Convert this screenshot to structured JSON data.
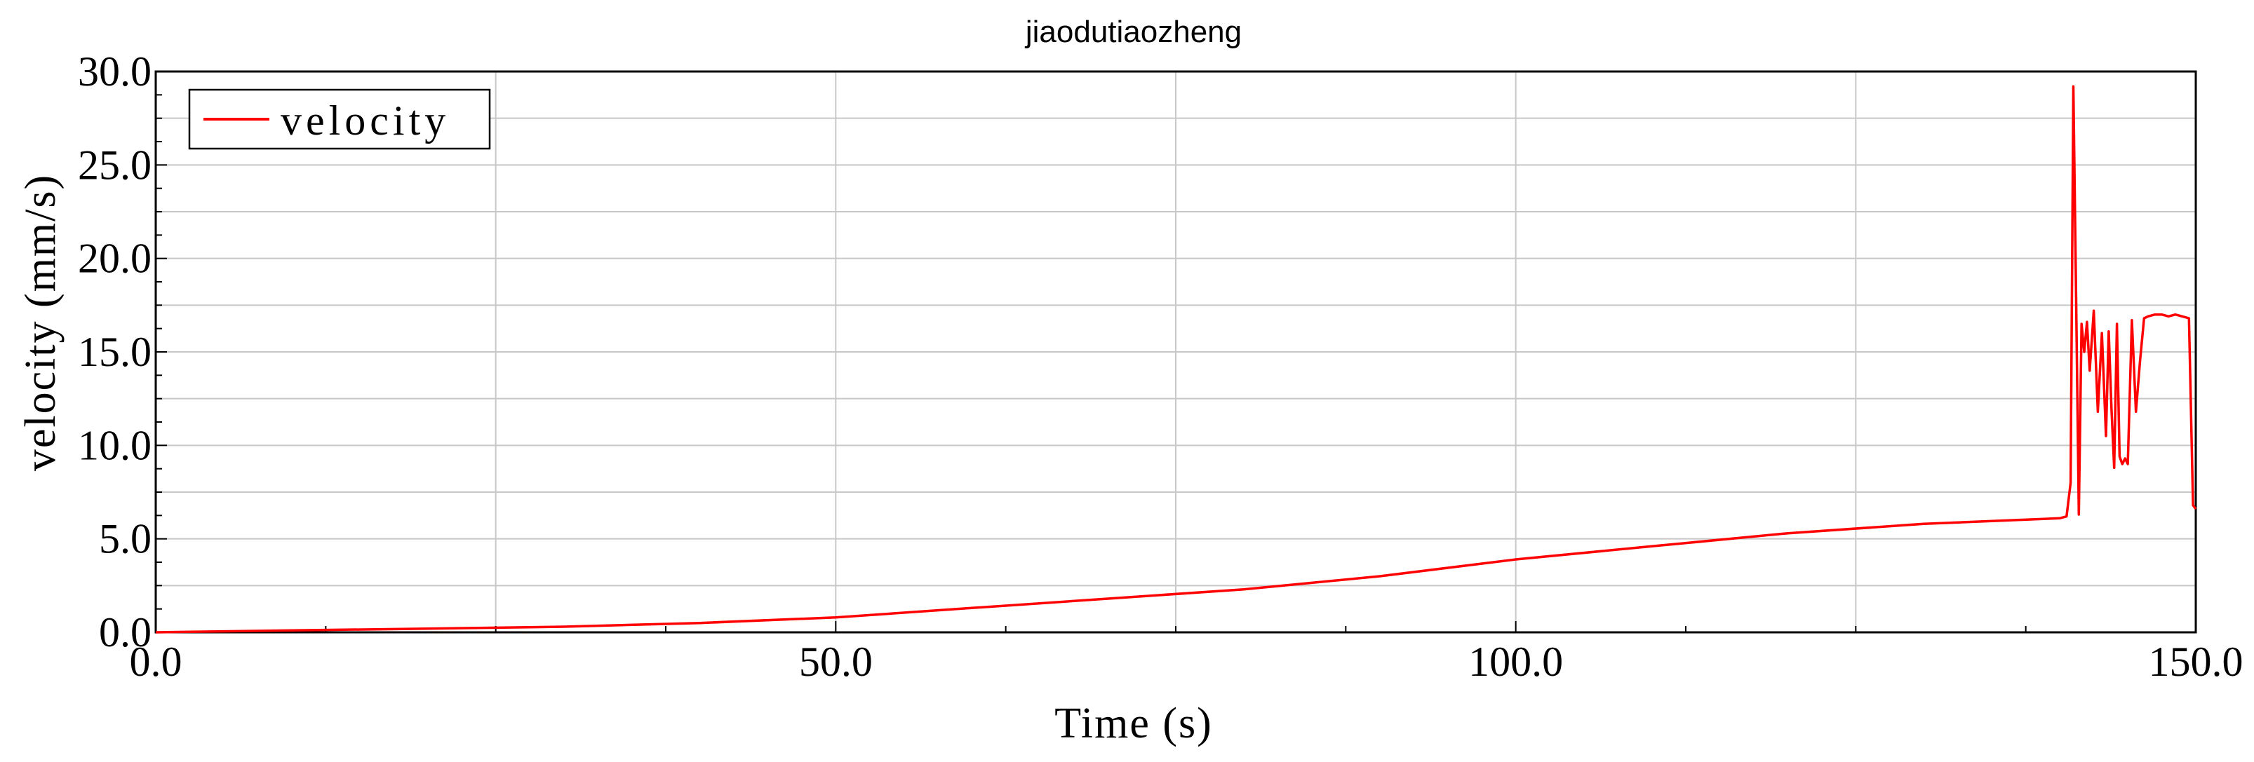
{
  "chart_data": {
    "type": "line",
    "title": "jiaodutiaozheng",
    "xlabel": "Time (s)",
    "ylabel": "velocity (mm/s)",
    "xlim": [
      0,
      150
    ],
    "ylim": [
      0,
      30
    ],
    "x_ticks": [
      "0.0",
      "50.0",
      "100.0",
      "150.0"
    ],
    "y_ticks": [
      "0.0",
      "5.0",
      "10.0",
      "15.0",
      "20.0",
      "25.0",
      "30.0"
    ],
    "grid": true,
    "legend_position": "top-left",
    "series": [
      {
        "name": "velocity",
        "color": "#ff0000",
        "x": [
          0,
          10,
          20,
          30,
          40,
          50,
          60,
          70,
          80,
          90,
          100,
          110,
          120,
          130,
          140,
          140.5,
          140.8,
          141.0,
          141.2,
          141.4,
          141.6,
          141.8,
          142.0,
          142.2,
          142.5,
          142.8,
          143.1,
          143.4,
          143.6,
          143.8,
          144.0,
          144.2,
          144.4,
          144.6,
          144.8,
          145.0,
          145.3,
          145.6,
          145.9,
          146.2,
          146.5,
          147.0,
          147.5,
          148.0,
          148.5,
          149.0,
          149.5,
          149.8,
          150.0
        ],
        "y": [
          0.0,
          0.1,
          0.2,
          0.3,
          0.5,
          0.8,
          1.3,
          1.8,
          2.3,
          3.0,
          3.9,
          4.6,
          5.3,
          5.8,
          6.1,
          6.2,
          8.0,
          29.2,
          18.0,
          6.3,
          16.5,
          15.0,
          16.6,
          14.0,
          17.2,
          11.8,
          16.0,
          10.5,
          16.1,
          12.0,
          8.8,
          16.5,
          9.4,
          9.0,
          9.3,
          9.0,
          16.7,
          11.8,
          14.5,
          16.8,
          16.9,
          17.0,
          17.0,
          16.9,
          17.0,
          16.9,
          16.8,
          6.8,
          6.6
        ]
      }
    ]
  }
}
